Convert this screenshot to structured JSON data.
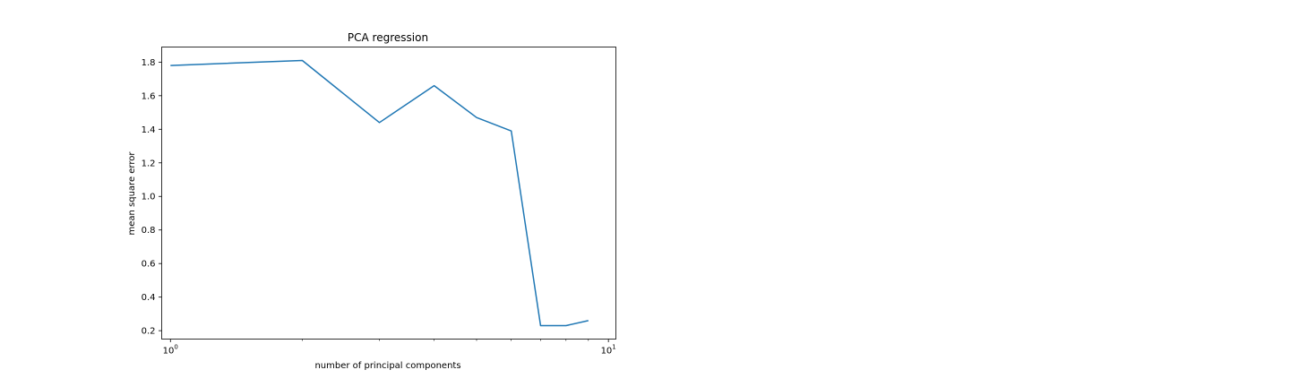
{
  "chart_data": {
    "type": "line",
    "title": "PCA regression",
    "xlabel": "number of principal components",
    "ylabel": "mean square error",
    "xscale": "log",
    "xlim": [
      0.955,
      10.4
    ],
    "ylim": [
      0.15,
      1.89
    ],
    "grid": false,
    "legend": "none",
    "x_ticks": [
      {
        "value": 1,
        "base": "10",
        "exponent": "0"
      },
      {
        "value": 10,
        "base": "10",
        "exponent": "1"
      }
    ],
    "y_ticks": [
      "0.2",
      "0.4",
      "0.6",
      "0.8",
      "1.0",
      "1.2",
      "1.4",
      "1.6",
      "1.8"
    ],
    "series": [
      {
        "color": "#1f77b4",
        "x": [
          1,
          2,
          3,
          4,
          5,
          6,
          7,
          8,
          9
        ],
        "values": [
          1.78,
          1.81,
          1.44,
          1.66,
          1.47,
          1.39,
          0.23,
          0.23,
          0.26
        ]
      }
    ]
  }
}
